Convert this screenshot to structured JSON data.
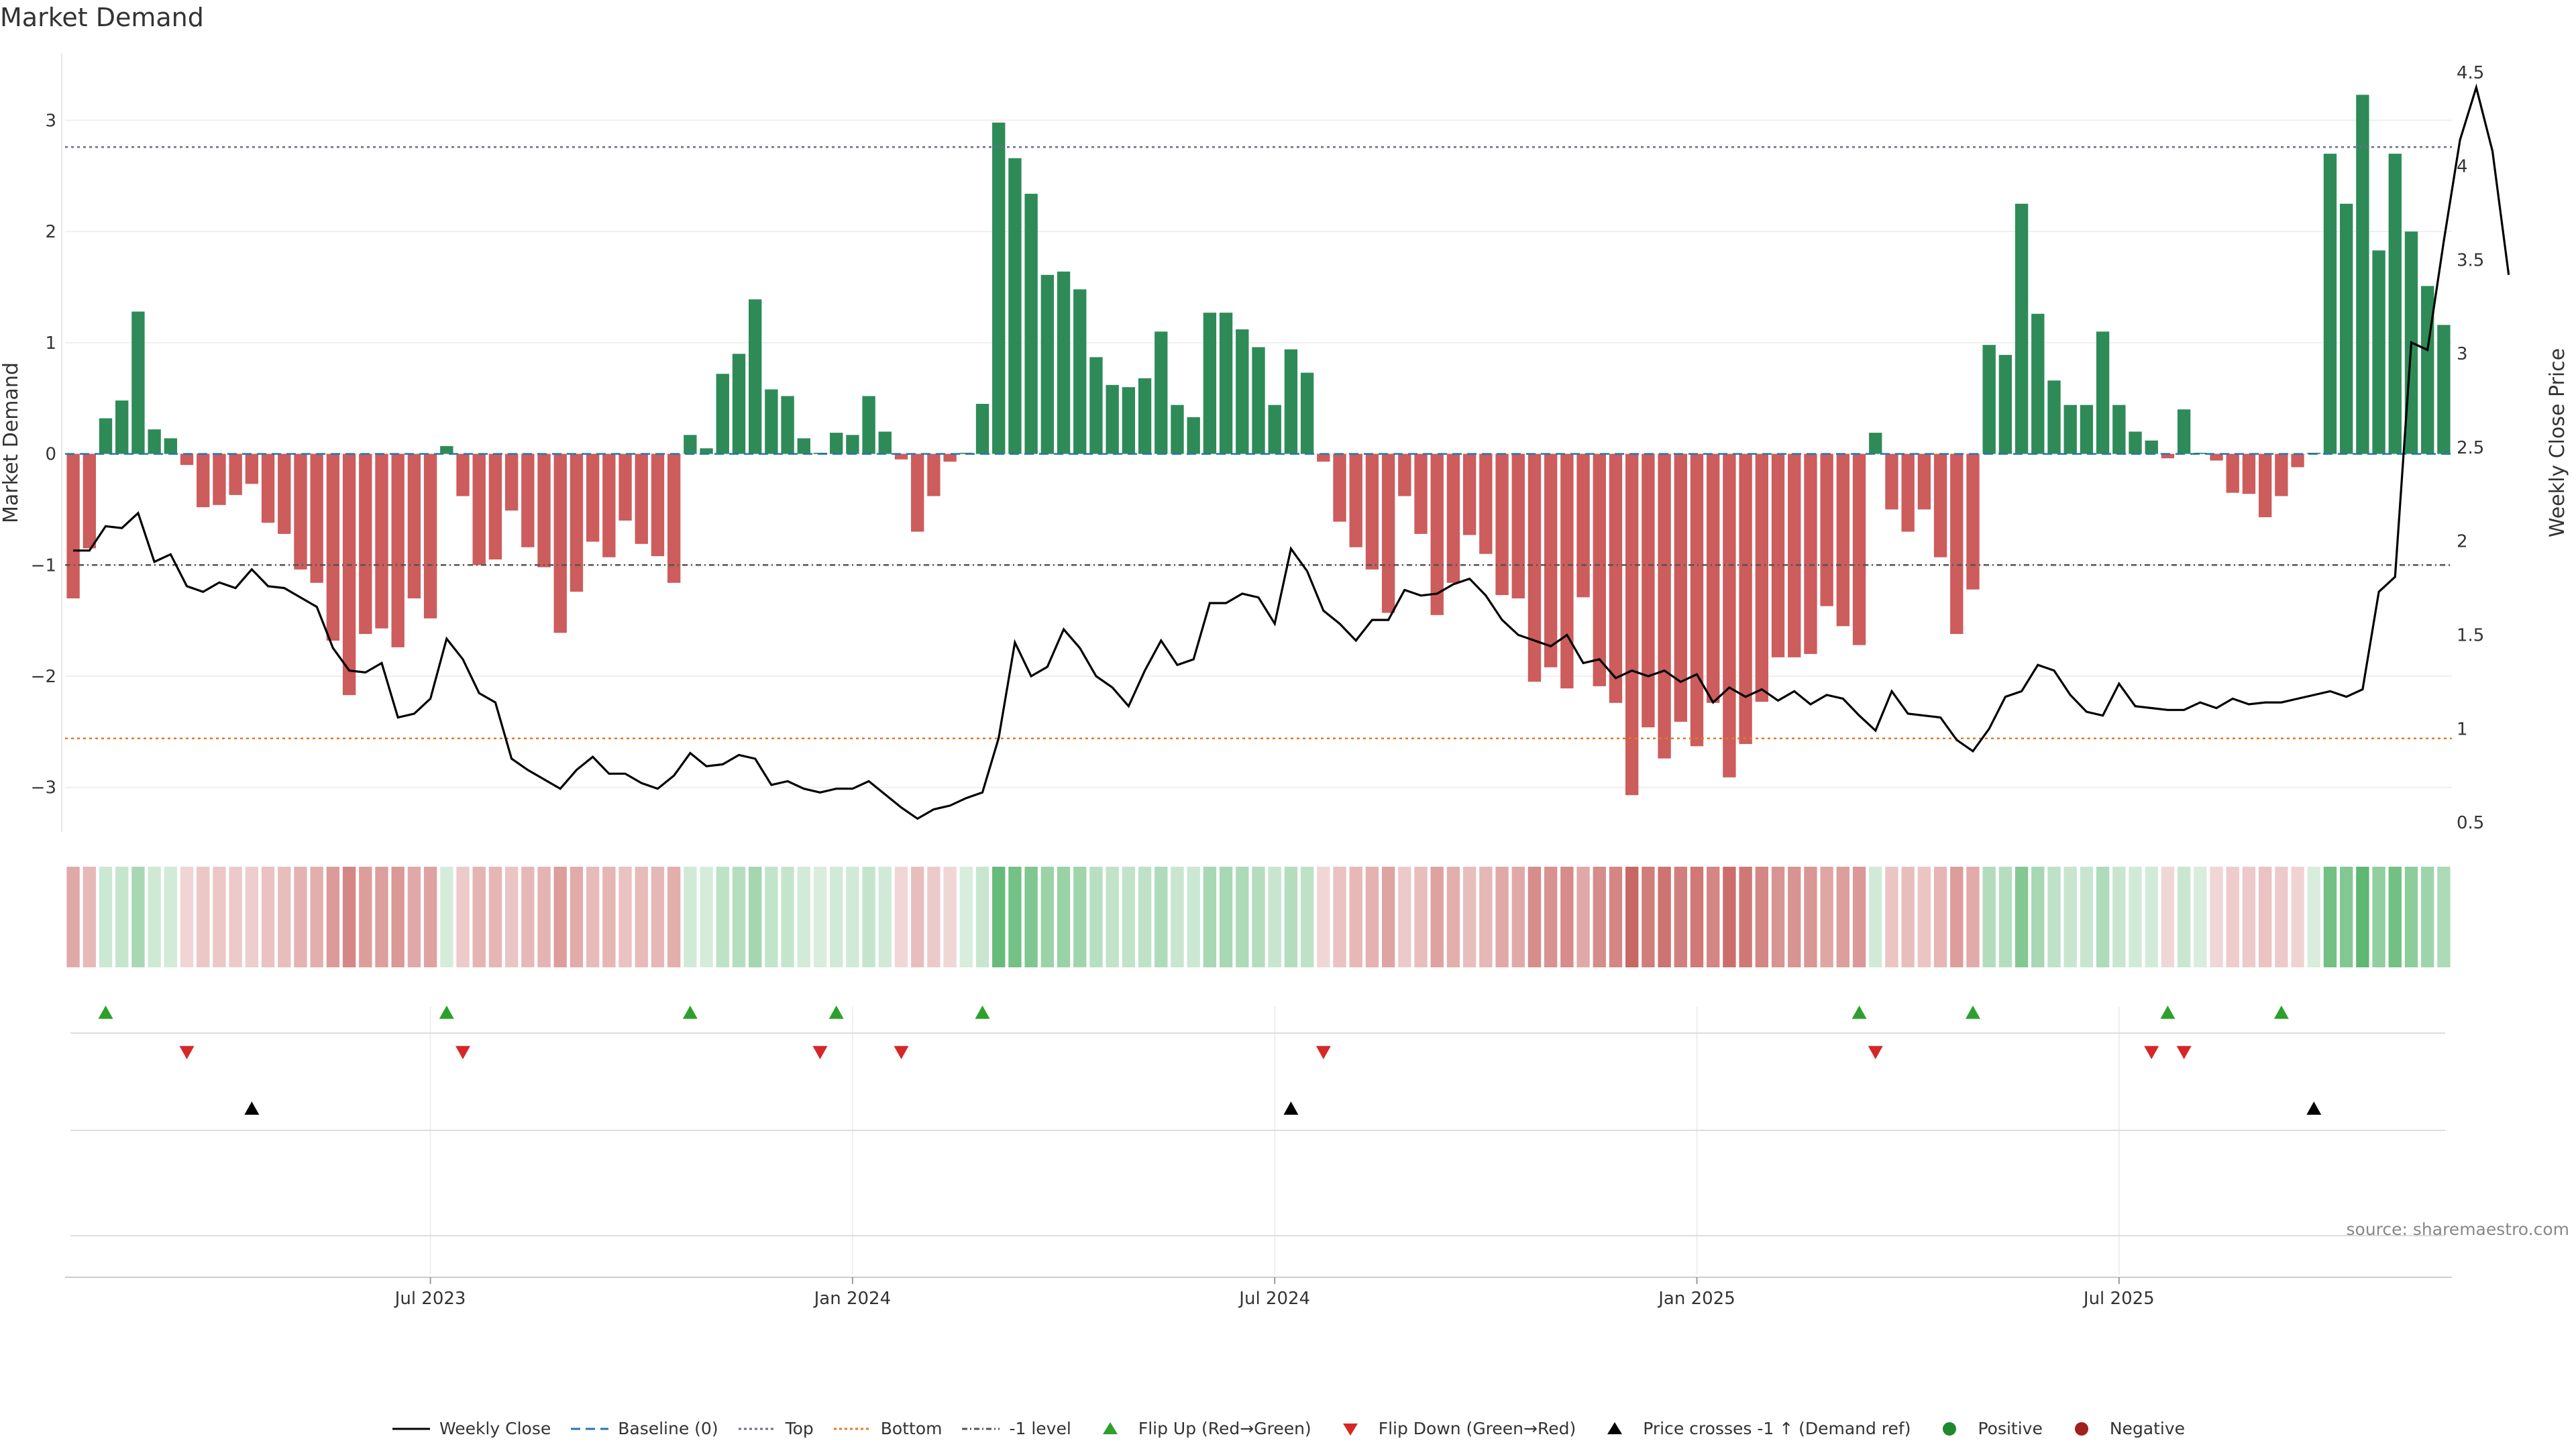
{
  "title": "Market Demand",
  "source_label": "source: sharemaestro.com",
  "colors": {
    "positive": "#2e8b57",
    "negative": "#cd5c5c",
    "close": "#000000",
    "baseline": "#1f77b4",
    "top": "#6a6a9a",
    "bottom": "#e07b22",
    "minus1": "#555555",
    "flip_up": "#2ca02c",
    "flip_down": "#d62728"
  },
  "legend": [
    {
      "key": "close",
      "label": "Weekly Close",
      "kind": "line-solid",
      "icon": "line-solid-icon"
    },
    {
      "key": "baseline",
      "label": "Baseline (0)",
      "kind": "line-dash",
      "icon": "line-dash-icon"
    },
    {
      "key": "top",
      "label": "Top",
      "kind": "line-dot",
      "icon": "line-dot-icon"
    },
    {
      "key": "bottom",
      "label": "Bottom",
      "kind": "line-dot",
      "icon": "line-dot-icon"
    },
    {
      "key": "minus1",
      "label": "-1 level",
      "kind": "line-dashdot",
      "icon": "line-dashdot-icon"
    },
    {
      "key": "flip_up",
      "label": "Flip Up (Red→Green)",
      "kind": "tri-up",
      "icon": "triangle-up-icon"
    },
    {
      "key": "flip_down",
      "label": "Flip Down (Green→Red)",
      "kind": "tri-down",
      "icon": "triangle-down-icon"
    },
    {
      "key": "close",
      "label": "Price crosses -1 ↑ (Demand ref)",
      "kind": "tri-up",
      "icon": "triangle-up-icon"
    },
    {
      "key": "flip_up",
      "label": "Positive",
      "kind": "dot",
      "icon": "dot-icon"
    },
    {
      "key": "flip_down",
      "label": "Negative",
      "kind": "dot",
      "icon": "dot-icon"
    }
  ],
  "chart_data": {
    "type": "bar",
    "title": "Market Demand",
    "ylabel": "Market Demand",
    "y2label": "Weekly Close Price",
    "ylim": [
      -3.4,
      3.6
    ],
    "y2lim": [
      0.45,
      4.6
    ],
    "yticks": [
      "3",
      "2",
      "1",
      "0",
      "−1",
      "−2",
      "−3"
    ],
    "yticks_values": [
      3,
      2,
      1,
      0,
      -1,
      -2,
      -3
    ],
    "y2ticks": [
      "4.5",
      "4",
      "3.5",
      "3",
      "2.5",
      "2",
      "1.5",
      "1",
      "0.5"
    ],
    "y2ticks_values": [
      4.5,
      4,
      3.5,
      3,
      2.5,
      2,
      1.5,
      1,
      0.5
    ],
    "xticks": [
      "Jul 2023",
      "Jan 2024",
      "Jul 2024",
      "Jan 2025",
      "Jul 2025"
    ],
    "xticks_index": [
      22,
      48,
      74,
      100,
      126
    ],
    "reference_lines": {
      "baseline": 0,
      "top": 2.76,
      "bottom": -2.56,
      "minus1": -1
    },
    "demand": [
      -1.3,
      -0.85,
      0.32,
      0.48,
      1.28,
      0.22,
      0.14,
      -0.1,
      -0.48,
      -0.46,
      -0.37,
      -0.27,
      -0.62,
      -0.72,
      -1.04,
      -1.16,
      -1.68,
      -2.17,
      -1.62,
      -1.57,
      -1.74,
      -1.3,
      -1.48,
      0.07,
      -0.38,
      -1.0,
      -0.95,
      -0.51,
      -0.84,
      -1.02,
      -1.61,
      -1.24,
      -0.79,
      -0.93,
      -0.6,
      -0.81,
      -0.92,
      -1.16,
      0.17,
      0.05,
      0.72,
      0.9,
      1.39,
      0.58,
      0.52,
      0.14,
      0.01,
      0.19,
      0.17,
      0.52,
      0.2,
      -0.05,
      -0.7,
      -0.38,
      -0.07,
      0.01,
      0.45,
      2.98,
      2.66,
      2.34,
      1.61,
      1.64,
      1.48,
      0.87,
      0.62,
      0.6,
      0.68,
      1.1,
      0.44,
      0.33,
      1.27,
      1.27,
      1.12,
      0.96,
      0.44,
      0.94,
      0.73,
      -0.07,
      -0.61,
      -0.84,
      -1.04,
      -1.43,
      -0.38,
      -0.72,
      -1.45,
      -1.16,
      -0.73,
      -0.9,
      -1.27,
      -1.3,
      -2.05,
      -1.92,
      -2.11,
      -1.29,
      -2.09,
      -2.24,
      -3.07,
      -2.46,
      -2.74,
      -2.41,
      -2.63,
      -2.24,
      -2.91,
      -2.61,
      -2.23,
      -1.83,
      -1.83,
      -1.8,
      -1.37,
      -1.55,
      -1.72,
      0.19,
      -0.5,
      -0.7,
      -0.5,
      -0.93,
      -1.62,
      -1.22,
      0.98,
      0.89,
      2.25,
      1.26,
      0.66,
      0.44,
      0.44,
      1.1,
      0.44,
      0.2,
      0.12,
      -0.04,
      0.4,
      0.01,
      -0.06,
      -0.35,
      -0.36,
      -0.57,
      -0.38,
      -0.12,
      0.01,
      2.7,
      2.25,
      3.23,
      1.83,
      2.7,
      2.0,
      1.51,
      1.16
    ],
    "close": [
      1.95,
      1.95,
      2.08,
      2.07,
      2.15,
      1.89,
      1.93,
      1.76,
      1.73,
      1.78,
      1.75,
      1.85,
      1.76,
      1.75,
      1.7,
      1.65,
      1.43,
      1.31,
      1.3,
      1.35,
      1.06,
      1.08,
      1.16,
      1.48,
      1.37,
      1.19,
      1.14,
      0.84,
      0.78,
      0.73,
      0.68,
      0.78,
      0.85,
      0.76,
      0.76,
      0.71,
      0.68,
      0.75,
      0.87,
      0.8,
      0.81,
      0.86,
      0.84,
      0.7,
      0.72,
      0.68,
      0.66,
      0.68,
      0.68,
      0.72,
      0.65,
      0.58,
      0.52,
      0.57,
      0.59,
      0.63,
      0.66,
      0.95,
      1.46,
      1.28,
      1.33,
      1.53,
      1.43,
      1.28,
      1.22,
      1.12,
      1.31,
      1.47,
      1.34,
      1.37,
      1.67,
      1.67,
      1.72,
      1.7,
      1.56,
      1.96,
      1.84,
      1.63,
      1.56,
      1.47,
      1.58,
      1.58,
      1.74,
      1.71,
      1.72,
      1.77,
      1.8,
      1.71,
      1.58,
      1.5,
      1.47,
      1.44,
      1.5,
      1.35,
      1.37,
      1.27,
      1.31,
      1.28,
      1.31,
      1.25,
      1.29,
      1.14,
      1.22,
      1.17,
      1.21,
      1.15,
      1.2,
      1.13,
      1.18,
      1.16,
      1.07,
      0.99,
      1.2,
      1.08,
      1.07,
      1.06,
      0.94,
      0.88,
      1.0,
      1.17,
      1.2,
      1.34,
      1.31,
      1.18,
      1.09,
      1.07,
      1.24,
      1.12,
      1.11,
      1.1,
      1.1,
      1.14,
      1.11,
      1.16,
      1.13,
      1.14,
      1.14,
      1.16,
      1.18,
      1.2,
      1.17,
      1.21,
      1.73,
      1.81,
      3.06,
      3.02,
      3.6,
      4.14,
      4.42,
      4.08,
      3.42
    ],
    "flip_up_index": [
      2,
      23,
      38,
      47,
      56,
      110,
      117,
      129,
      136
    ],
    "flip_down_index": [
      7,
      24,
      46,
      51,
      77,
      111,
      128,
      130
    ],
    "price_cross_index": [
      11,
      75,
      138
    ]
  }
}
